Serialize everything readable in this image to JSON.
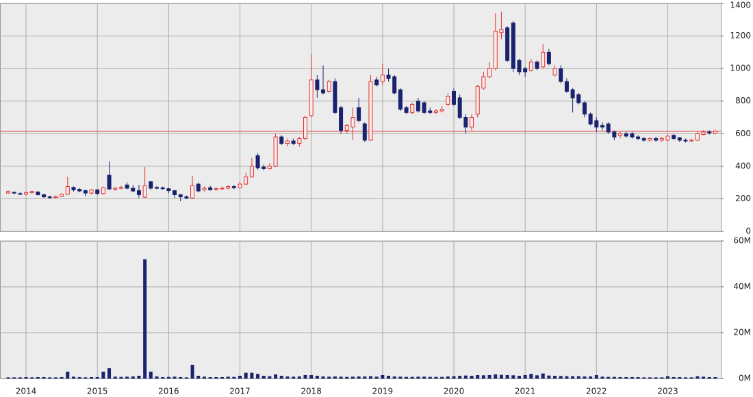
{
  "chart_data": {
    "type": "candlestick",
    "categories": [
      null,
      null,
      null,
      "2014",
      null,
      null,
      null,
      null,
      null,
      null,
      null,
      null,
      null,
      null,
      null,
      "2015",
      null,
      null,
      null,
      null,
      null,
      null,
      null,
      null,
      null,
      null,
      null,
      "2016",
      null,
      null,
      null,
      null,
      null,
      null,
      null,
      null,
      null,
      null,
      null,
      "2017",
      null,
      null,
      null,
      null,
      null,
      null,
      null,
      null,
      null,
      null,
      null,
      "2018",
      null,
      null,
      null,
      null,
      null,
      null,
      null,
      null,
      null,
      null,
      null,
      "2019",
      null,
      null,
      null,
      null,
      null,
      null,
      null,
      null,
      null,
      null,
      null,
      "2020",
      null,
      null,
      null,
      null,
      null,
      null,
      null,
      null,
      null,
      null,
      null,
      "2021",
      null,
      null,
      null,
      null,
      null,
      null,
      null,
      null,
      null,
      null,
      null,
      "2022",
      null,
      null,
      null,
      null,
      null,
      null,
      null,
      null,
      null,
      null,
      null,
      "2023",
      null,
      null,
      null,
      null,
      null,
      null,
      null,
      null
    ],
    "open": [
      235,
      240,
      232,
      228,
      238,
      242,
      225,
      212,
      208,
      215,
      228,
      270,
      258,
      250,
      235,
      255,
      232,
      345,
      258,
      265,
      285,
      265,
      250,
      210,
      305,
      270,
      268,
      262,
      250,
      225,
      212,
      205,
      290,
      255,
      268,
      258,
      262,
      265,
      275,
      268,
      290,
      335,
      465,
      395,
      385,
      400,
      580,
      540,
      555,
      540,
      570,
      710,
      930,
      870,
      860,
      920,
      760,
      620,
      640,
      760,
      660,
      560,
      930,
      920,
      960,
      950,
      870,
      760,
      730,
      800,
      790,
      740,
      730,
      740,
      780,
      860,
      820,
      700,
      640,
      720,
      880,
      950,
      1000,
      1220,
      1250,
      1280,
      1050,
      1000,
      990,
      1040,
      1010,
      1100,
      960,
      1000,
      920,
      870,
      840,
      790,
      720,
      680,
      650,
      660,
      610,
      590,
      600,
      600,
      580,
      570,
      560,
      570,
      560,
      560,
      590,
      575,
      560,
      555,
      560,
      595,
      610,
      600
    ],
    "high": [
      250,
      245,
      240,
      245,
      250,
      248,
      230,
      218,
      220,
      235,
      335,
      275,
      265,
      258,
      260,
      258,
      275,
      430,
      272,
      282,
      300,
      285,
      285,
      395,
      310,
      280,
      275,
      268,
      255,
      230,
      220,
      340,
      300,
      275,
      280,
      270,
      275,
      285,
      285,
      305,
      360,
      450,
      480,
      410,
      420,
      600,
      590,
      570,
      570,
      580,
      710,
      1090,
      960,
      1020,
      930,
      940,
      770,
      660,
      760,
      820,
      670,
      960,
      950,
      1030,
      1000,
      960,
      880,
      770,
      790,
      820,
      800,
      760,
      750,
      770,
      850,
      880,
      840,
      720,
      720,
      900,
      980,
      1040,
      1340,
      1350,
      1260,
      1290,
      1060,
      1010,
      1060,
      1050,
      1150,
      1120,
      1020,
      1020,
      940,
      880,
      850,
      800,
      730,
      700,
      670,
      670,
      620,
      610,
      610,
      610,
      590,
      580,
      580,
      580,
      580,
      595,
      600,
      580,
      570,
      570,
      610,
      620,
      620,
      625
    ],
    "low": [
      230,
      228,
      222,
      222,
      232,
      220,
      205,
      200,
      204,
      210,
      225,
      245,
      240,
      215,
      228,
      225,
      225,
      255,
      250,
      258,
      258,
      240,
      205,
      205,
      255,
      258,
      255,
      235,
      205,
      185,
      198,
      200,
      240,
      245,
      250,
      250,
      255,
      258,
      260,
      262,
      285,
      330,
      380,
      375,
      380,
      395,
      530,
      520,
      530,
      520,
      560,
      700,
      820,
      840,
      850,
      720,
      600,
      600,
      560,
      670,
      550,
      555,
      890,
      900,
      920,
      840,
      740,
      720,
      720,
      730,
      720,
      720,
      720,
      730,
      770,
      770,
      690,
      600,
      620,
      700,
      870,
      940,
      990,
      1180,
      1040,
      980,
      960,
      950,
      980,
      990,
      1000,
      1020,
      950,
      910,
      850,
      730,
      780,
      700,
      650,
      610,
      620,
      600,
      560,
      570,
      575,
      570,
      560,
      550,
      550,
      550,
      550,
      550,
      560,
      550,
      545,
      550,
      555,
      590,
      595,
      595
    ],
    "close": [
      245,
      235,
      230,
      238,
      245,
      225,
      212,
      208,
      215,
      228,
      275,
      255,
      248,
      235,
      255,
      232,
      268,
      260,
      265,
      270,
      265,
      248,
      225,
      280,
      265,
      265,
      262,
      250,
      225,
      212,
      205,
      280,
      248,
      265,
      255,
      262,
      265,
      275,
      268,
      290,
      335,
      400,
      390,
      385,
      400,
      580,
      540,
      555,
      540,
      570,
      700,
      930,
      870,
      850,
      920,
      730,
      620,
      650,
      700,
      680,
      560,
      920,
      900,
      960,
      940,
      850,
      750,
      730,
      780,
      740,
      730,
      730,
      740,
      750,
      830,
      780,
      700,
      640,
      700,
      890,
      950,
      1000,
      1230,
      1240,
      1050,
      1000,
      980,
      980,
      1040,
      1000,
      1100,
      1030,
      1000,
      920,
      860,
      820,
      790,
      720,
      660,
      640,
      640,
      610,
      580,
      600,
      585,
      580,
      570,
      560,
      570,
      560,
      570,
      585,
      570,
      560,
      555,
      560,
      600,
      610,
      605,
      615
    ],
    "volume": [
      500000,
      500000,
      500000,
      600000,
      500000,
      600000,
      600000,
      500000,
      500000,
      600000,
      3000000,
      800000,
      600000,
      500000,
      600000,
      600000,
      3000000,
      4500000,
      800000,
      700000,
      800000,
      900000,
      1200000,
      52000000,
      3000000,
      900000,
      600000,
      700000,
      800000,
      600000,
      500000,
      6000000,
      1200000,
      800000,
      600000,
      600000,
      600000,
      800000,
      700000,
      1200000,
      2500000,
      2500000,
      2000000,
      1200000,
      1000000,
      1800000,
      1200000,
      900000,
      800000,
      900000,
      1500000,
      1500000,
      1200000,
      900000,
      800000,
      900000,
      800000,
      700000,
      800000,
      900000,
      900000,
      1000000,
      800000,
      1500000,
      1200000,
      900000,
      800000,
      700000,
      700000,
      800000,
      800000,
      700000,
      700000,
      700000,
      900000,
      1000000,
      1200000,
      1300000,
      1200000,
      1500000,
      1400000,
      1500000,
      1800000,
      1600000,
      1500000,
      1400000,
      1200000,
      1500000,
      2000000,
      1400000,
      2200000,
      1300000,
      1200000,
      1100000,
      1000000,
      1000000,
      1000000,
      900000,
      900000,
      1500000,
      800000,
      700000,
      700000,
      600000,
      600000,
      600000,
      600000,
      500000,
      500000,
      500000,
      500000,
      1000000,
      600000,
      600000,
      500000,
      500000,
      1000000,
      800000,
      600000,
      600000
    ],
    "up_color": "#e03030",
    "down_color": "#1a2370",
    "volume_color": "#1a2370",
    "reference_line": 615,
    "reference_color": "#e03030",
    "ylim": [
      0,
      1400
    ],
    "yticks": [
      0,
      200,
      400,
      600,
      800,
      1000,
      1200,
      1400
    ],
    "y2lim": [
      0,
      60000000
    ],
    "y2ticks": [
      {
        "value": 0,
        "label": "0M"
      },
      {
        "value": 20000000,
        "label": "20M"
      },
      {
        "value": 40000000,
        "label": "40M"
      },
      {
        "value": 60000000,
        "label": "60M"
      }
    ],
    "grid": true
  }
}
